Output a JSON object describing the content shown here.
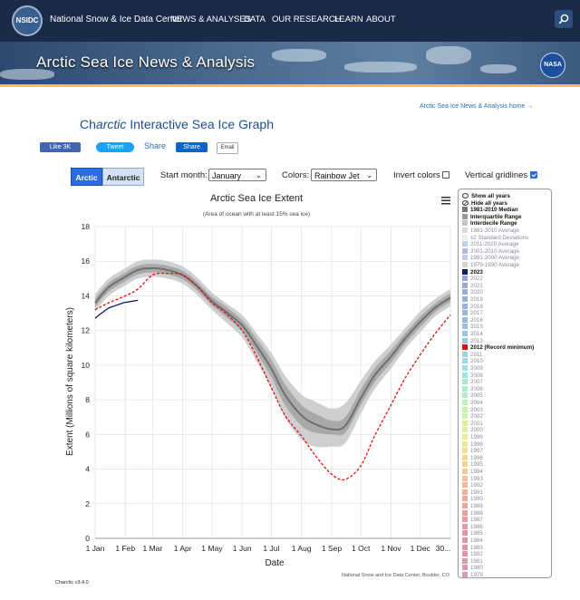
{
  "header": {
    "logo_text": "NSIDC",
    "site_name": "National Snow & Ice Data Center",
    "nav": [
      "NEWS & ANALYSES",
      "DATA",
      "OUR RESEARCH",
      "LEARN",
      "ABOUT"
    ],
    "search_icon": "search-icon"
  },
  "banner": {
    "title": "Arctic Sea Ice News & Analysis",
    "partner_logo": "NASA"
  },
  "page": {
    "home_link": "Arctic Sea Ice News & Analysis home →",
    "title_prefix": "Ch",
    "title_italic": "arctic",
    "title_suffix": " Interactive Sea Ice Graph"
  },
  "social": {
    "like": "Like 3K",
    "tweet": "Tweet",
    "share_text": "Share",
    "linkedin": "Share",
    "email": "Email"
  },
  "controls": {
    "tab_arctic": "Arctic",
    "tab_antarctic": "Antarctic",
    "start_month_label": "Start month:",
    "start_month_value": "January",
    "colors_label": "Colors:",
    "colors_value": "Rainbow Jet",
    "invert_label": "Invert colors",
    "invert_checked": false,
    "gridlines_label": "Vertical gridlines",
    "gridlines_checked": true
  },
  "chart_data": {
    "type": "line",
    "title": "Arctic Sea Ice Extent",
    "subtitle": "(Area of ocean with at least 15% sea ice)",
    "xlabel": "Date",
    "ylabel": "Extent (Millions of square kilometers)",
    "ylim": [
      0,
      18
    ],
    "yticks": [
      0,
      2,
      4,
      6,
      8,
      10,
      12,
      14,
      16,
      18
    ],
    "xlim": [
      1,
      366
    ],
    "xticks": [
      {
        "day": 1,
        "label": "1 Jan"
      },
      {
        "day": 32,
        "label": "1 Feb"
      },
      {
        "day": 60,
        "label": "1 Mar"
      },
      {
        "day": 91,
        "label": "1 Apr"
      },
      {
        "day": 121,
        "label": "1 May"
      },
      {
        "day": 152,
        "label": "1 Jun"
      },
      {
        "day": 182,
        "label": "1 Jul"
      },
      {
        "day": 213,
        "label": "1 Aug"
      },
      {
        "day": 244,
        "label": "1 Sep"
      },
      {
        "day": 274,
        "label": "1 Oct"
      },
      {
        "day": 305,
        "label": "1 Nov"
      },
      {
        "day": 335,
        "label": "1 Dec"
      },
      {
        "day": 366,
        "label": "30..."
      }
    ],
    "grid": "vertical",
    "x_days": [
      1,
      15,
      32,
      45,
      60,
      75,
      91,
      105,
      121,
      135,
      152,
      166,
      182,
      196,
      213,
      227,
      244,
      258,
      274,
      288,
      305,
      319,
      335,
      350,
      366
    ],
    "median": [
      13.6,
      14.5,
      15.1,
      15.5,
      15.6,
      15.5,
      15.2,
      14.6,
      13.7,
      13.1,
      12.3,
      11.2,
      9.8,
      8.3,
      7.1,
      6.6,
      6.3,
      6.5,
      8.1,
      9.4,
      10.5,
      11.5,
      12.5,
      13.3,
      13.9
    ],
    "interdecile_low": [
      13.1,
      14.0,
      14.6,
      15.0,
      15.1,
      15.0,
      14.7,
      14.1,
      13.2,
      12.5,
      11.6,
      10.3,
      8.7,
      7.0,
      5.7,
      5.3,
      5.3,
      5.5,
      7.2,
      8.6,
      9.8,
      10.9,
      11.9,
      12.8,
      13.4
    ],
    "interdecile_high": [
      14.1,
      15.0,
      15.6,
      16.0,
      16.1,
      16.0,
      15.7,
      15.1,
      14.2,
      13.6,
      12.9,
      11.9,
      10.7,
      9.4,
      8.3,
      7.9,
      7.5,
      7.8,
      9.1,
      10.2,
      11.2,
      12.1,
      13.1,
      13.8,
      14.4
    ],
    "interquartile_low": [
      13.35,
      14.25,
      14.85,
      15.25,
      15.35,
      15.25,
      14.95,
      14.35,
      13.45,
      12.8,
      11.95,
      10.8,
      9.3,
      7.7,
      6.5,
      6.1,
      6.0,
      6.1,
      7.7,
      9.0,
      10.15,
      11.2,
      12.2,
      13.05,
      13.65
    ],
    "interquartile_high": [
      13.85,
      14.75,
      15.35,
      15.75,
      15.85,
      15.75,
      15.45,
      14.85,
      13.95,
      13.4,
      12.6,
      11.6,
      10.3,
      8.9,
      7.7,
      7.2,
      6.8,
      7.0,
      8.6,
      9.8,
      10.85,
      11.8,
      12.8,
      13.55,
      14.15
    ],
    "series": [
      {
        "name": "2023",
        "color": "#0a1a6e",
        "dash": false,
        "x": [
          1,
          5,
          10,
          15,
          20,
          25,
          30,
          35,
          40,
          45
        ],
        "values": [
          12.7,
          12.9,
          13.1,
          13.3,
          13.4,
          13.5,
          13.6,
          13.65,
          13.7,
          13.75
        ]
      },
      {
        "name": "2012 (Record minimum)",
        "color": "#e01010",
        "dash": true,
        "x": [
          1,
          15,
          32,
          45,
          60,
          75,
          91,
          105,
          121,
          135,
          152,
          166,
          182,
          196,
          213,
          227,
          244,
          258,
          274,
          288,
          305,
          319,
          335,
          350,
          366
        ],
        "values": [
          13.2,
          13.6,
          14.0,
          14.4,
          15.2,
          15.3,
          15.2,
          14.6,
          13.6,
          13.0,
          12.0,
          10.6,
          8.7,
          7.1,
          5.9,
          4.8,
          3.7,
          3.4,
          4.2,
          5.9,
          7.7,
          9.2,
          10.6,
          11.8,
          12.9
        ]
      }
    ],
    "credit": "National Snow and Ice Data Center, Boulder, CO"
  },
  "legend": {
    "items": [
      {
        "label": "Show all years",
        "bold": true,
        "icon": "eye"
      },
      {
        "label": "Hide all years",
        "bold": true,
        "icon": "eye-slash"
      },
      {
        "label": "1981-2010 Median",
        "bold": true,
        "color": "#777777"
      },
      {
        "label": "Interquartile Range",
        "bold": true,
        "color": "#999999"
      },
      {
        "label": "Interdecile Range",
        "bold": true,
        "color": "#c4c4c4"
      },
      {
        "label": "1981-2010 Average",
        "bold": false,
        "color": "#dcdcdc"
      },
      {
        "label": "±2 Standard Deviations",
        "bold": false,
        "color": "#eeeeee"
      },
      {
        "label": "2011-2020 Average",
        "bold": false,
        "color": "#bcd0e8"
      },
      {
        "label": "2001-2010 Average",
        "bold": false,
        "color": "#a8c0e0"
      },
      {
        "label": "1991-2000 Average",
        "bold": false,
        "color": "#c8c8e8"
      },
      {
        "label": "1979-1990 Average",
        "bold": false,
        "color": "#e0d0d0"
      },
      {
        "label": "2023",
        "bold": true,
        "color": "#0a1a6e"
      },
      {
        "label": "2022",
        "bold": false,
        "color": "#9aa4d4"
      },
      {
        "label": "2021",
        "bold": false,
        "color": "#9aa8d6"
      },
      {
        "label": "2020",
        "bold": false,
        "color": "#9aacd8"
      },
      {
        "label": "2019",
        "bold": false,
        "color": "#9ab0da"
      },
      {
        "label": "2018",
        "bold": false,
        "color": "#9ab4dc"
      },
      {
        "label": "2017",
        "bold": false,
        "color": "#9ab8de"
      },
      {
        "label": "2016",
        "bold": false,
        "color": "#9abce0"
      },
      {
        "label": "2015",
        "bold": false,
        "color": "#9ac0e2"
      },
      {
        "label": "2014",
        "bold": false,
        "color": "#9ac4e4"
      },
      {
        "label": "2013",
        "bold": false,
        "color": "#9ac8e6"
      },
      {
        "label": "2012 (Record minimum)",
        "bold": true,
        "color": "#e01010"
      },
      {
        "label": "2011",
        "bold": false,
        "color": "#9ad4ea"
      },
      {
        "label": "2010",
        "bold": false,
        "color": "#98dcea"
      },
      {
        "label": "2009",
        "bold": false,
        "color": "#98e4e6"
      },
      {
        "label": "2008",
        "bold": false,
        "color": "#98e8de"
      },
      {
        "label": "2007",
        "bold": false,
        "color": "#9ceed6"
      },
      {
        "label": "2006",
        "bold": false,
        "color": "#a4f0cc"
      },
      {
        "label": "2005",
        "bold": false,
        "color": "#aef2c2"
      },
      {
        "label": "2004",
        "bold": false,
        "color": "#b8f4b8"
      },
      {
        "label": "2003",
        "bold": false,
        "color": "#c2f4ae"
      },
      {
        "label": "2002",
        "bold": false,
        "color": "#ccf4a4"
      },
      {
        "label": "2001",
        "bold": false,
        "color": "#d6f29c"
      },
      {
        "label": "2000",
        "bold": false,
        "color": "#e0f096"
      },
      {
        "label": "1999",
        "bold": false,
        "color": "#e8ee92"
      },
      {
        "label": "1998",
        "bold": false,
        "color": "#eee890"
      },
      {
        "label": "1997",
        "bold": false,
        "color": "#f2e08e"
      },
      {
        "label": "1996",
        "bold": false,
        "color": "#f4d88e"
      },
      {
        "label": "1995",
        "bold": false,
        "color": "#f6d08e"
      },
      {
        "label": "1994",
        "bold": false,
        "color": "#f6c890"
      },
      {
        "label": "1993",
        "bold": false,
        "color": "#f6c092"
      },
      {
        "label": "1992",
        "bold": false,
        "color": "#f6b894"
      },
      {
        "label": "1991",
        "bold": false,
        "color": "#f6b096"
      },
      {
        "label": "1990",
        "bold": false,
        "color": "#f4aa98"
      },
      {
        "label": "1989",
        "bold": false,
        "color": "#f2a49a"
      },
      {
        "label": "1988",
        "bold": false,
        "color": "#f09e9c"
      },
      {
        "label": "1987",
        "bold": false,
        "color": "#ee9a9e"
      },
      {
        "label": "1986",
        "bold": false,
        "color": "#ec98a0"
      },
      {
        "label": "1985",
        "bold": false,
        "color": "#ea96a2"
      },
      {
        "label": "1984",
        "bold": false,
        "color": "#e894a4"
      },
      {
        "label": "1983",
        "bold": false,
        "color": "#e694a6"
      },
      {
        "label": "1982",
        "bold": false,
        "color": "#e494a8"
      },
      {
        "label": "1981",
        "bold": false,
        "color": "#e296aa"
      },
      {
        "label": "1980",
        "bold": false,
        "color": "#e098ac"
      },
      {
        "label": "1979",
        "bold": false,
        "color": "#de9aae"
      }
    ]
  },
  "footer": {
    "version": "Charctic v3.4.0"
  },
  "colors": {
    "header_bg": "#1a2a48",
    "accent_gold": "#f0c34a",
    "link": "#2a6eb5",
    "tab_active": "#2a6de0"
  }
}
